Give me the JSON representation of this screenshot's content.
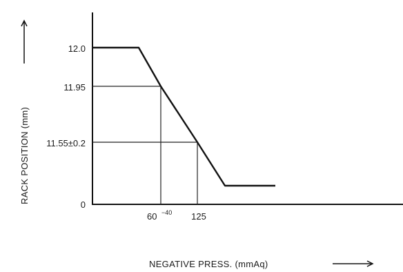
{
  "chart_data": {
    "type": "line",
    "title": "",
    "xlabel": "NEGATIVE PRESS. (mmAq)",
    "ylabel": "RACK POSITION (mm)",
    "y_ticks": [
      "12.0",
      "11.95",
      "11.55±0.2",
      "0"
    ],
    "x_ticks": [
      "60",
      "125"
    ],
    "x_tick_60_superscript": "−40",
    "grid": false,
    "legend": "none",
    "series": [
      {
        "points": [
          {
            "x": "start",
            "y": "12.0"
          },
          {
            "x": "knee",
            "y": "12.0"
          },
          {
            "x": "60",
            "y": "11.95"
          },
          {
            "x": "125",
            "y": "11.55±0.2"
          },
          {
            "x": "bottom",
            "y": "low stop"
          },
          {
            "x": "end",
            "y": "low stop"
          }
        ]
      }
    ]
  }
}
